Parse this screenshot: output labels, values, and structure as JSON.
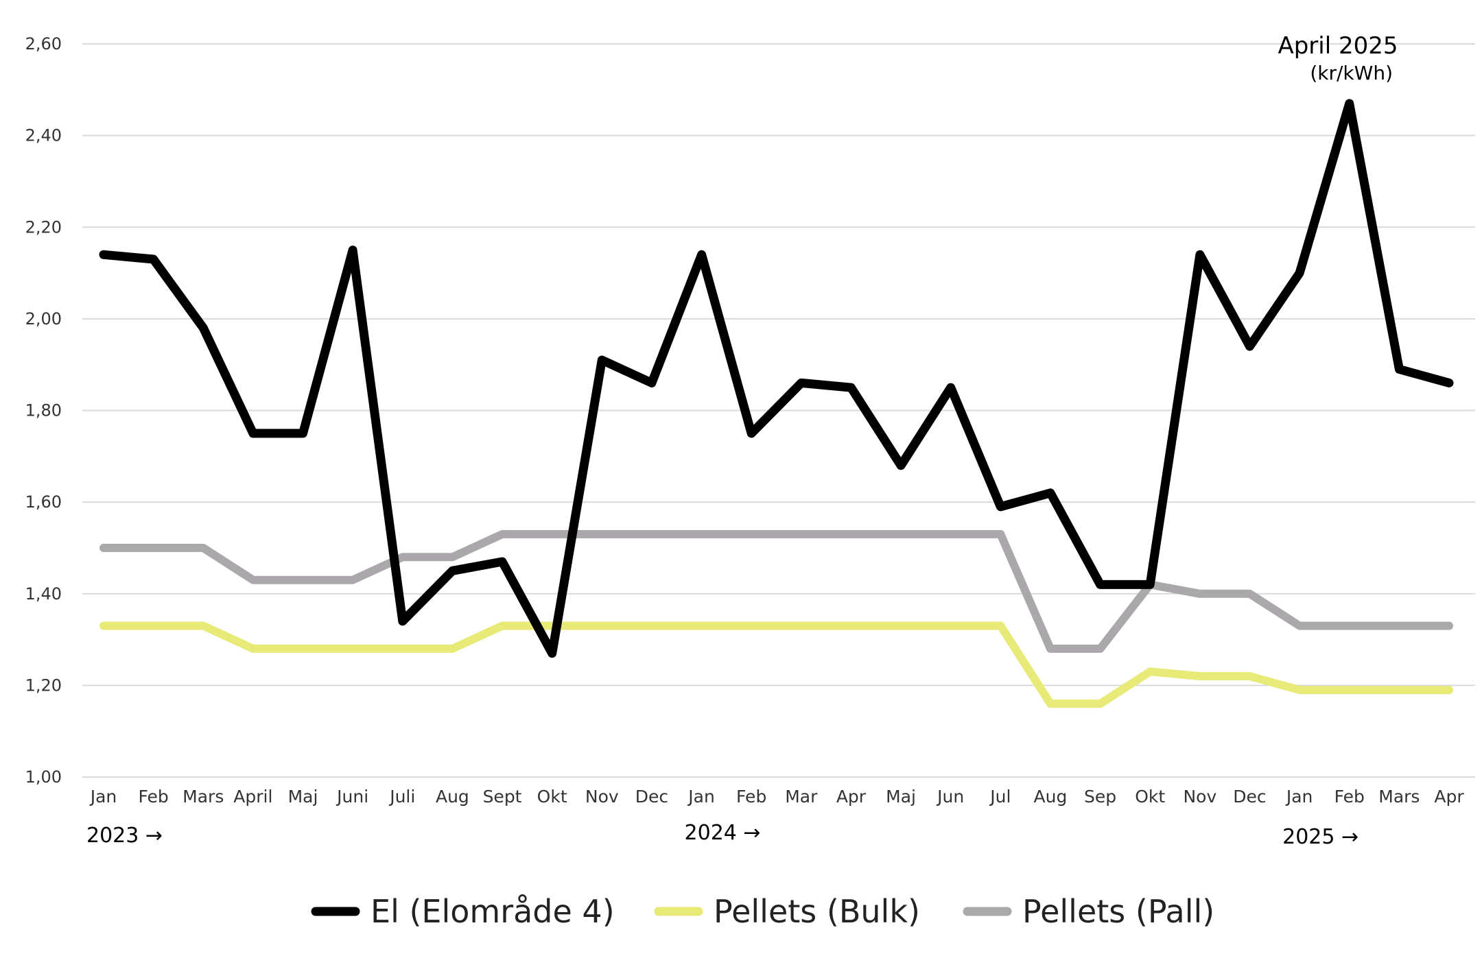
{
  "chart_data": {
    "type": "line",
    "title": "",
    "xlabel": "",
    "ylabel": "",
    "annotation": {
      "line1": "April 2025",
      "line2": "(kr/kWh)"
    },
    "categories": [
      "Jan",
      "Feb",
      "Mars",
      "April",
      "Maj",
      "Juni",
      "Juli",
      "Aug",
      "Sept",
      "Okt",
      "Nov",
      "Dec",
      "Jan",
      "Feb",
      "Mar",
      "Apr",
      "Maj",
      "Jun",
      "Jul",
      "Aug",
      "Sep",
      "Okt",
      "Nov",
      "Dec",
      "Jan",
      "Feb",
      "Mars",
      "Apr"
    ],
    "year_labels": [
      {
        "label": "2023 →",
        "category_index": 0
      },
      {
        "label": "2024 →",
        "category_index": 12
      },
      {
        "label": "2025 →",
        "category_index": 24
      }
    ],
    "ylim": [
      1.0,
      2.6
    ],
    "yticks": [
      "1,00",
      "1,20",
      "1,40",
      "1,60",
      "1,80",
      "2,00",
      "2,20",
      "2,40",
      "2,60"
    ],
    "ytick_values": [
      1.0,
      1.2,
      1.4,
      1.6,
      1.8,
      2.0,
      2.2,
      2.4,
      2.6
    ],
    "grid": true,
    "legend_position": "bottom",
    "series": [
      {
        "name": "El (Elområde 4)",
        "color": "#000000",
        "values": [
          2.14,
          2.13,
          1.98,
          1.75,
          1.75,
          2.15,
          1.34,
          1.45,
          1.47,
          1.27,
          1.91,
          1.86,
          2.14,
          1.75,
          1.86,
          1.85,
          1.68,
          1.85,
          1.59,
          1.62,
          1.42,
          1.42,
          2.14,
          1.94,
          2.1,
          2.47,
          1.89,
          1.86
        ]
      },
      {
        "name": "Pellets (Bulk)",
        "color": "#e8ea78",
        "values": [
          1.33,
          1.33,
          1.33,
          1.28,
          1.28,
          1.28,
          1.28,
          1.28,
          1.33,
          1.33,
          1.33,
          1.33,
          1.33,
          1.33,
          1.33,
          1.33,
          1.33,
          1.33,
          1.33,
          1.16,
          1.16,
          1.23,
          1.22,
          1.22,
          1.19,
          1.19,
          1.19,
          1.19
        ]
      },
      {
        "name": "Pellets (Pall)",
        "color": "#aaa8aa",
        "values": [
          1.5,
          1.5,
          1.5,
          1.43,
          1.43,
          1.43,
          1.48,
          1.48,
          1.53,
          1.53,
          1.53,
          1.53,
          1.53,
          1.53,
          1.53,
          1.53,
          1.53,
          1.53,
          1.53,
          1.28,
          1.28,
          1.42,
          1.4,
          1.4,
          1.33,
          1.33,
          1.33,
          1.33
        ]
      }
    ]
  }
}
